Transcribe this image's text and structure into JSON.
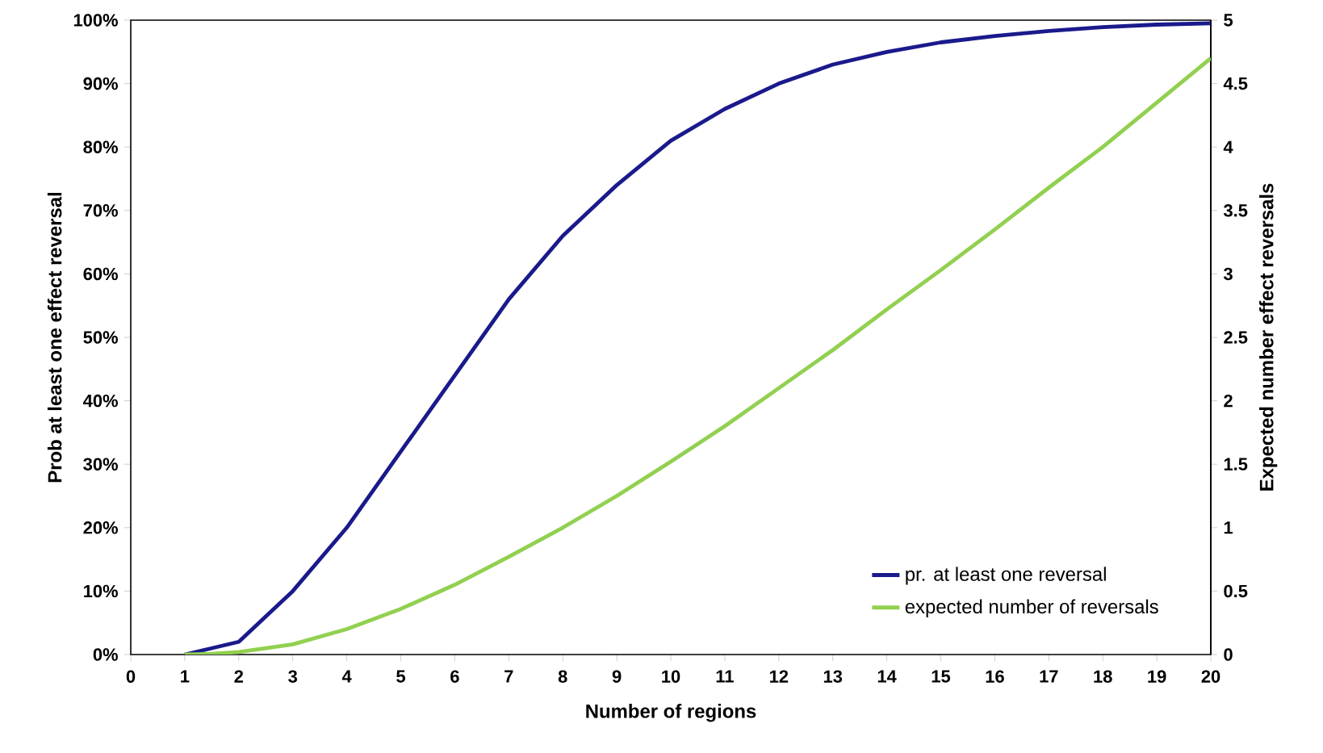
{
  "chart_data": {
    "type": "line",
    "xlabel": "Number of regions",
    "ylabel": "Prob at least one effect reversal",
    "y2label": "Expected number effect reversals",
    "x": [
      1,
      1.5,
      2,
      3,
      4,
      5,
      6,
      7,
      8,
      9,
      10,
      11,
      12,
      13,
      14,
      15,
      16,
      17,
      18,
      19,
      20
    ],
    "series": [
      {
        "name": "pr. at least one reversal",
        "color": "#1a1a8c",
        "values": [
          0,
          1,
          2,
          10,
          20,
          32,
          44,
          56,
          66,
          74,
          81,
          86,
          90,
          93,
          95,
          96.5,
          97.5,
          98.3,
          98.9,
          99.3,
          99.5
        ]
      },
      {
        "name": "expected number of reversals",
        "color": "#92d050",
        "axis": "y2",
        "values": [
          0,
          0.005,
          0.02,
          0.08,
          0.2,
          0.36,
          0.55,
          0.77,
          1.0,
          1.25,
          1.52,
          1.8,
          2.1,
          2.4,
          2.72,
          3.03,
          3.35,
          3.68,
          4.0,
          4.35,
          4.7
        ]
      }
    ],
    "xlim": [
      0,
      20
    ],
    "xticks": [
      0,
      1,
      2,
      3,
      4,
      5,
      6,
      7,
      8,
      9,
      10,
      11,
      12,
      13,
      14,
      15,
      16,
      17,
      18,
      19,
      20
    ],
    "ylim": [
      0,
      100
    ],
    "yticks": [
      {
        "value": 0,
        "label": "0%"
      },
      {
        "value": 10,
        "label": "10%"
      },
      {
        "value": 20,
        "label": "20%"
      },
      {
        "value": 30,
        "label": "30%"
      },
      {
        "value": 40,
        "label": "40%"
      },
      {
        "value": 50,
        "label": "50%"
      },
      {
        "value": 60,
        "label": "60%"
      },
      {
        "value": 70,
        "label": "70%"
      },
      {
        "value": 80,
        "label": "80%"
      },
      {
        "value": 90,
        "label": "90%"
      },
      {
        "value": 100,
        "label": "100%"
      }
    ],
    "y2lim": [
      0,
      5
    ],
    "y2ticks": [
      0,
      0.5,
      1,
      1.5,
      2,
      2.5,
      3,
      3.5,
      4,
      4.5,
      5
    ],
    "legend": "bottom right",
    "grid": false,
    "marker": "none",
    "line_style": "solid"
  }
}
